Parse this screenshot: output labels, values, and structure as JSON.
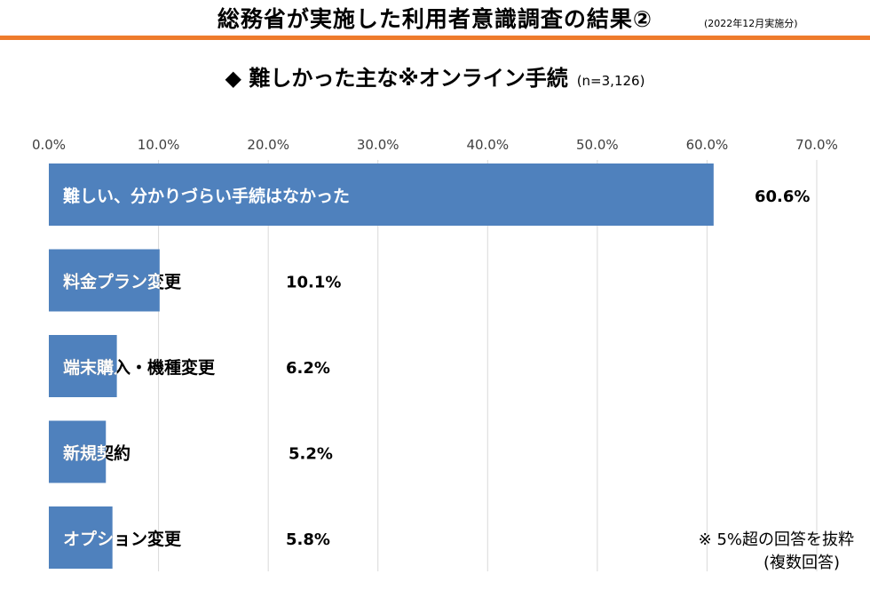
{
  "header": {
    "title": "総務省が実施した利用者意識調査の結果②",
    "date_note": "(2022年12月実施分)"
  },
  "subtitle": {
    "text": "◆ 難しかった主な※オンライン手続",
    "sample_size": "(n=3,126)"
  },
  "colors": {
    "bar": "#4f81bd",
    "grid": "#d9d9d9",
    "accent_rule": "#ee7b2c"
  },
  "chart_data": {
    "type": "bar",
    "orientation": "horizontal",
    "axis_position": "top",
    "title": "",
    "xlabel": "",
    "ylabel": "",
    "xlim": [
      0,
      70
    ],
    "ticks": [
      0,
      10,
      20,
      30,
      40,
      50,
      60,
      70
    ],
    "tick_labels": [
      "0.0%",
      "10.0%",
      "20.0%",
      "30.0%",
      "40.0%",
      "50.0%",
      "60.0%",
      "70.0%"
    ],
    "grid": true,
    "categories": [
      "難しい、分かりづらい手続はなかった",
      "料金プラン変更",
      "端末購入・機種変更",
      "新規契約",
      "オプション変更"
    ],
    "values": [
      60.6,
      10.1,
      6.2,
      5.2,
      5.8
    ],
    "value_labels": [
      "60.6%",
      "10.1%",
      "6.2%",
      "5.2%",
      "5.8%"
    ]
  },
  "footnote": {
    "line1": "※ 5%超の回答を抜粋",
    "line2": "(複数回答)"
  }
}
